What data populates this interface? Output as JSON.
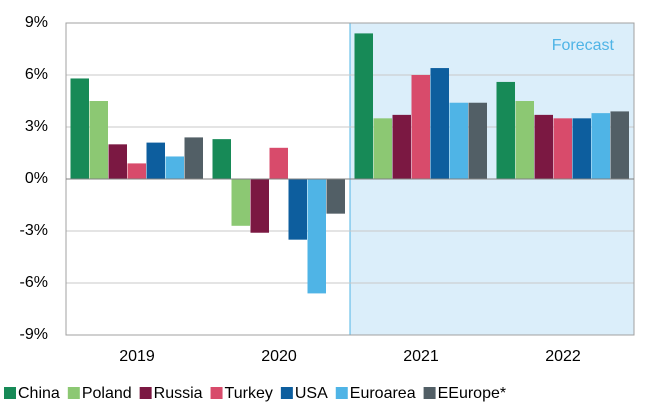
{
  "chart_data": {
    "type": "bar",
    "annotation": "Forecast",
    "categories": [
      "2019",
      "2020",
      "2021",
      "2022"
    ],
    "series": [
      {
        "name": "China",
        "color": "#178a57",
        "values": [
          5.8,
          2.3,
          8.4,
          5.6
        ]
      },
      {
        "name": "Poland",
        "color": "#8cc873",
        "values": [
          4.5,
          -2.7,
          3.5,
          4.5
        ]
      },
      {
        "name": "Russia",
        "color": "#7b1842",
        "values": [
          2.0,
          -3.1,
          3.7,
          3.7
        ]
      },
      {
        "name": "Turkey",
        "color": "#d84b6b",
        "values": [
          0.9,
          1.8,
          6.0,
          3.5
        ]
      },
      {
        "name": "USA",
        "color": "#0d5e9e",
        "values": [
          2.1,
          -3.5,
          6.4,
          3.5
        ]
      },
      {
        "name": "Euroarea",
        "color": "#4fb4e6",
        "values": [
          1.3,
          -6.6,
          4.4,
          3.8
        ]
      },
      {
        "name": "EEurope*",
        "color": "#525f66",
        "values": [
          2.4,
          -2.0,
          4.4,
          3.9
        ]
      }
    ],
    "ylim": [
      -9,
      9
    ],
    "yticks": [
      {
        "value": -9,
        "label": "-9%"
      },
      {
        "value": -6,
        "label": "-6%"
      },
      {
        "value": -3,
        "label": "-3%"
      },
      {
        "value": 0,
        "label": "0%"
      },
      {
        "value": 3,
        "label": "3%"
      },
      {
        "value": 6,
        "label": "6%"
      },
      {
        "value": 9,
        "label": "9%"
      }
    ],
    "grid": true
  }
}
